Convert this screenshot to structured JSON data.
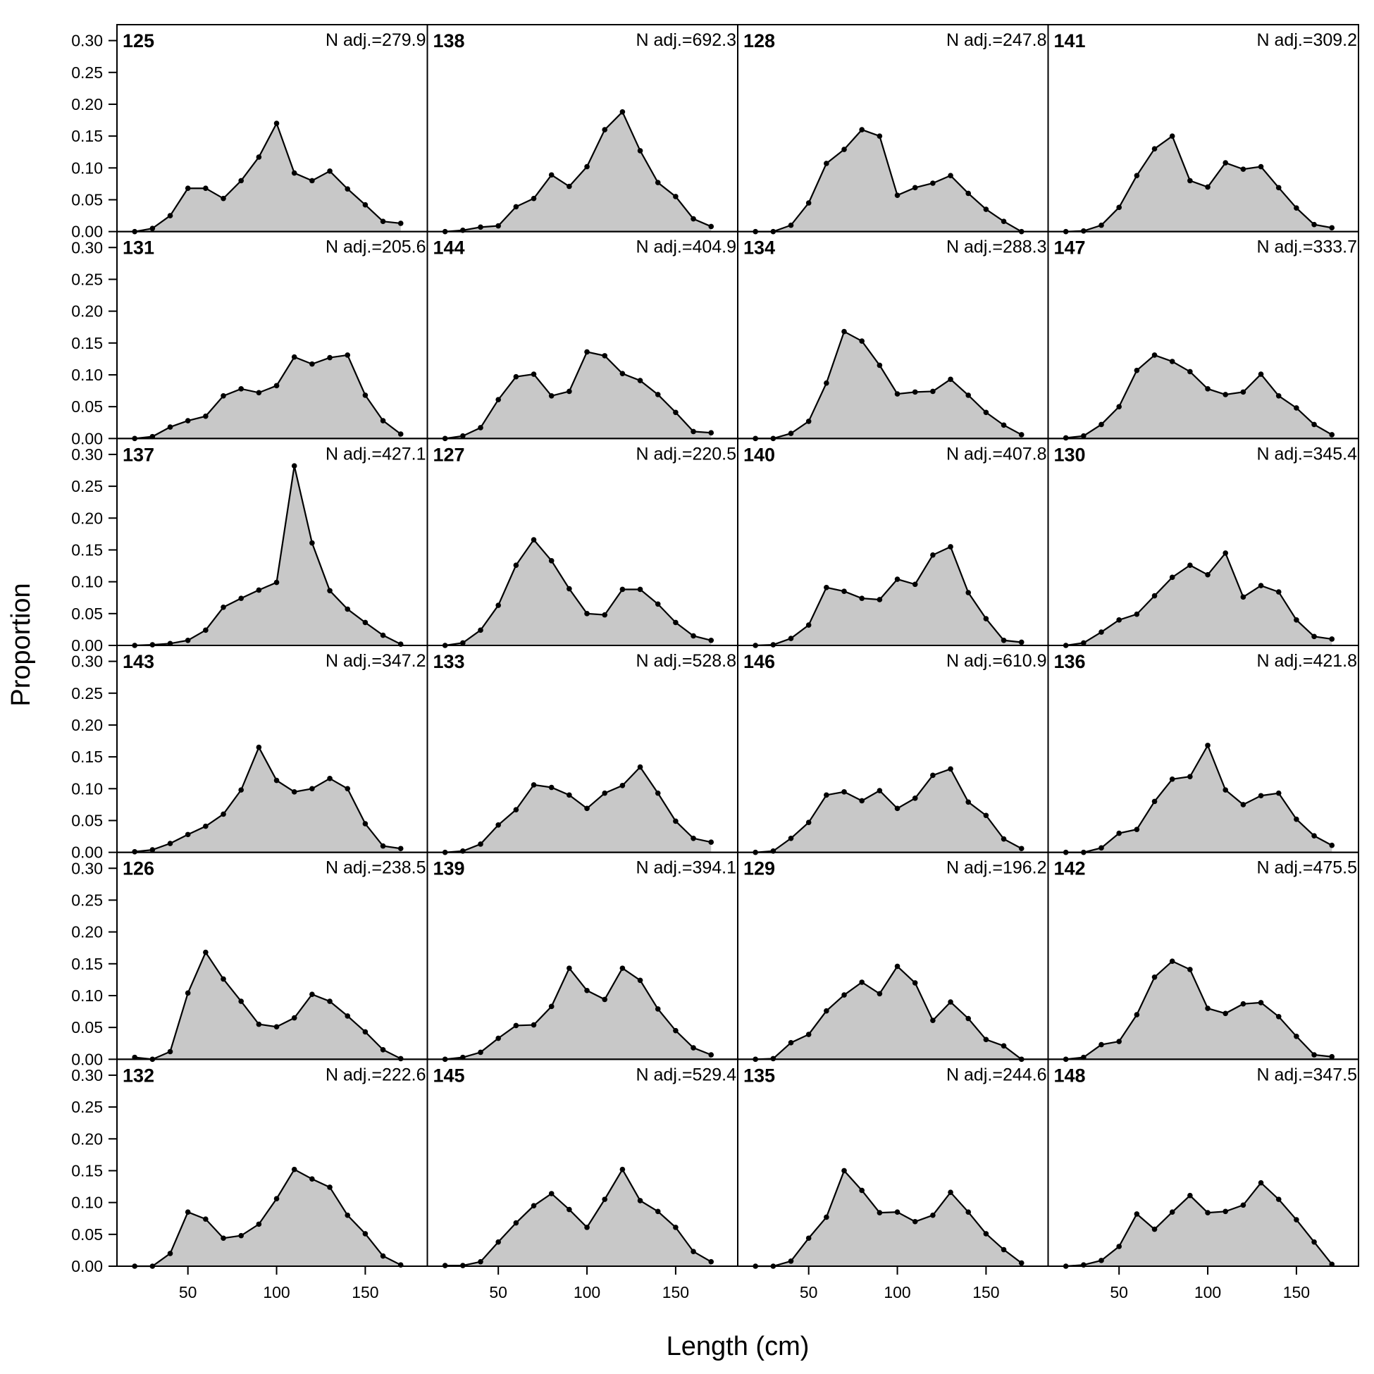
{
  "chart_data": {
    "type": "area",
    "xlabel": "Length (cm)",
    "ylabel": "Proportion",
    "xlim": [
      10,
      185
    ],
    "ylim": [
      0,
      0.325
    ],
    "x_ticks": [
      50,
      100,
      150
    ],
    "y_ticks": [
      0,
      0.05,
      0.1,
      0.15,
      0.2,
      0.25,
      0.3
    ],
    "y_tick_labels": [
      "0.00",
      "0.05",
      "0.10",
      "0.15",
      "0.20",
      "0.25",
      "0.30"
    ],
    "x_tick_labels": [
      "50",
      "100",
      "150"
    ],
    "x": [
      20,
      30,
      40,
      50,
      60,
      70,
      80,
      90,
      100,
      110,
      120,
      130,
      140,
      150,
      160,
      170
    ],
    "panels": [
      {
        "label": "125",
        "n": "N adj.=279.9",
        "values": [
          0.0,
          0.005,
          0.025,
          0.068,
          0.068,
          0.052,
          0.08,
          0.117,
          0.17,
          0.092,
          0.08,
          0.095,
          0.067,
          0.042,
          0.016,
          0.013
        ]
      },
      {
        "label": "131",
        "n": "N adj.=205.6",
        "values": [
          0.0,
          0.003,
          0.018,
          0.028,
          0.035,
          0.067,
          0.078,
          0.072,
          0.083,
          0.128,
          0.117,
          0.127,
          0.131,
          0.068,
          0.028,
          0.007
        ]
      },
      {
        "label": "137",
        "n": "N adj.=427.1",
        "values": [
          0.0,
          0.001,
          0.003,
          0.008,
          0.024,
          0.06,
          0.074,
          0.087,
          0.099,
          0.282,
          0.161,
          0.086,
          0.057,
          0.036,
          0.016,
          0.002
        ]
      },
      {
        "label": "143",
        "n": "N adj.=347.2",
        "values": [
          0.001,
          0.004,
          0.014,
          0.028,
          0.041,
          0.06,
          0.098,
          0.165,
          0.113,
          0.095,
          0.1,
          0.116,
          0.1,
          0.045,
          0.01,
          0.006
        ]
      },
      {
        "label": "126",
        "n": "N adj.=238.5",
        "values": [
          0.003,
          0.0,
          0.012,
          0.104,
          0.168,
          0.126,
          0.091,
          0.055,
          0.051,
          0.065,
          0.102,
          0.091,
          0.068,
          0.043,
          0.015,
          0.001
        ]
      },
      {
        "label": "132",
        "n": "N adj.=222.6",
        "values": [
          0.0,
          0.0,
          0.02,
          0.085,
          0.074,
          0.044,
          0.048,
          0.066,
          0.106,
          0.152,
          0.137,
          0.124,
          0.08,
          0.051,
          0.016,
          0.002
        ]
      },
      {
        "label": "138",
        "n": "N adj.=692.3",
        "values": [
          0.0,
          0.002,
          0.007,
          0.009,
          0.039,
          0.052,
          0.089,
          0.071,
          0.102,
          0.16,
          0.188,
          0.127,
          0.077,
          0.055,
          0.02,
          0.008
        ]
      },
      {
        "label": "144",
        "n": "N adj.=404.9",
        "values": [
          0.0,
          0.004,
          0.017,
          0.061,
          0.097,
          0.101,
          0.067,
          0.074,
          0.136,
          0.13,
          0.102,
          0.091,
          0.069,
          0.041,
          0.011,
          0.009
        ]
      },
      {
        "label": "127",
        "n": "N adj.=220.5",
        "values": [
          0.0,
          0.004,
          0.024,
          0.063,
          0.126,
          0.166,
          0.133,
          0.089,
          0.05,
          0.048,
          0.088,
          0.088,
          0.065,
          0.036,
          0.015,
          0.008
        ]
      },
      {
        "label": "133",
        "n": "N adj.=528.8",
        "values": [
          0.0,
          0.002,
          0.013,
          0.043,
          0.067,
          0.106,
          0.102,
          0.09,
          0.069,
          0.093,
          0.105,
          0.134,
          0.093,
          0.049,
          0.022,
          0.016
        ]
      },
      {
        "label": "139",
        "n": "N adj.=394.1",
        "values": [
          0.0,
          0.003,
          0.011,
          0.033,
          0.053,
          0.054,
          0.083,
          0.143,
          0.108,
          0.094,
          0.143,
          0.124,
          0.079,
          0.045,
          0.018,
          0.007
        ]
      },
      {
        "label": "145",
        "n": "N adj.=529.4",
        "values": [
          0.001,
          0.001,
          0.007,
          0.038,
          0.068,
          0.095,
          0.114,
          0.089,
          0.061,
          0.105,
          0.152,
          0.103,
          0.086,
          0.061,
          0.023,
          0.007
        ]
      },
      {
        "label": "128",
        "n": "N adj.=247.8",
        "values": [
          0.0,
          0.0,
          0.01,
          0.045,
          0.107,
          0.129,
          0.16,
          0.15,
          0.057,
          0.069,
          0.076,
          0.088,
          0.06,
          0.035,
          0.016,
          0.0
        ]
      },
      {
        "label": "134",
        "n": "N adj.=288.3",
        "values": [
          0.0,
          0.0,
          0.008,
          0.027,
          0.087,
          0.168,
          0.153,
          0.115,
          0.07,
          0.073,
          0.074,
          0.093,
          0.068,
          0.041,
          0.021,
          0.006
        ]
      },
      {
        "label": "140",
        "n": "N adj.=407.8",
        "values": [
          0.0,
          0.001,
          0.011,
          0.032,
          0.091,
          0.085,
          0.074,
          0.072,
          0.104,
          0.096,
          0.142,
          0.155,
          0.083,
          0.042,
          0.008,
          0.005
        ]
      },
      {
        "label": "146",
        "n": "N adj.=610.9",
        "values": [
          0.0,
          0.002,
          0.022,
          0.047,
          0.09,
          0.095,
          0.081,
          0.097,
          0.069,
          0.085,
          0.121,
          0.131,
          0.079,
          0.058,
          0.021,
          0.006
        ]
      },
      {
        "label": "129",
        "n": "N adj.=196.2",
        "values": [
          0.0,
          0.001,
          0.026,
          0.039,
          0.076,
          0.101,
          0.121,
          0.103,
          0.146,
          0.12,
          0.061,
          0.09,
          0.064,
          0.031,
          0.021,
          0.0
        ]
      },
      {
        "label": "135",
        "n": "N adj.=244.6",
        "values": [
          0.0,
          0.0,
          0.008,
          0.044,
          0.077,
          0.15,
          0.119,
          0.084,
          0.085,
          0.07,
          0.08,
          0.116,
          0.085,
          0.051,
          0.026,
          0.005
        ]
      },
      {
        "label": "141",
        "n": "N adj.=309.2",
        "values": [
          0.0,
          0.001,
          0.01,
          0.038,
          0.088,
          0.13,
          0.15,
          0.08,
          0.07,
          0.108,
          0.098,
          0.102,
          0.069,
          0.037,
          0.011,
          0.006
        ]
      },
      {
        "label": "147",
        "n": "N adj.=333.7",
        "values": [
          0.001,
          0.004,
          0.022,
          0.05,
          0.107,
          0.131,
          0.121,
          0.105,
          0.078,
          0.069,
          0.073,
          0.101,
          0.067,
          0.048,
          0.022,
          0.006
        ]
      },
      {
        "label": "130",
        "n": "N adj.=345.4",
        "values": [
          0.0,
          0.004,
          0.021,
          0.04,
          0.049,
          0.078,
          0.107,
          0.126,
          0.111,
          0.145,
          0.076,
          0.094,
          0.084,
          0.04,
          0.014,
          0.01
        ]
      },
      {
        "label": "136",
        "n": "N adj.=421.8",
        "values": [
          0.0,
          0.0,
          0.007,
          0.03,
          0.036,
          0.08,
          0.115,
          0.119,
          0.168,
          0.098,
          0.075,
          0.089,
          0.093,
          0.052,
          0.026,
          0.011
        ]
      },
      {
        "label": "142",
        "n": "N adj.=475.5",
        "values": [
          0.0,
          0.003,
          0.023,
          0.028,
          0.07,
          0.129,
          0.154,
          0.141,
          0.08,
          0.072,
          0.087,
          0.089,
          0.067,
          0.036,
          0.007,
          0.004
        ]
      },
      {
        "label": "148",
        "n": "N adj.=347.5",
        "values": [
          0.0,
          0.002,
          0.009,
          0.031,
          0.082,
          0.058,
          0.085,
          0.111,
          0.084,
          0.086,
          0.096,
          0.131,
          0.105,
          0.073,
          0.038,
          0.003
        ]
      }
    ],
    "grid": false,
    "legend": "none",
    "fill_color": "#c8c8c8",
    "line_color": "#000000"
  }
}
